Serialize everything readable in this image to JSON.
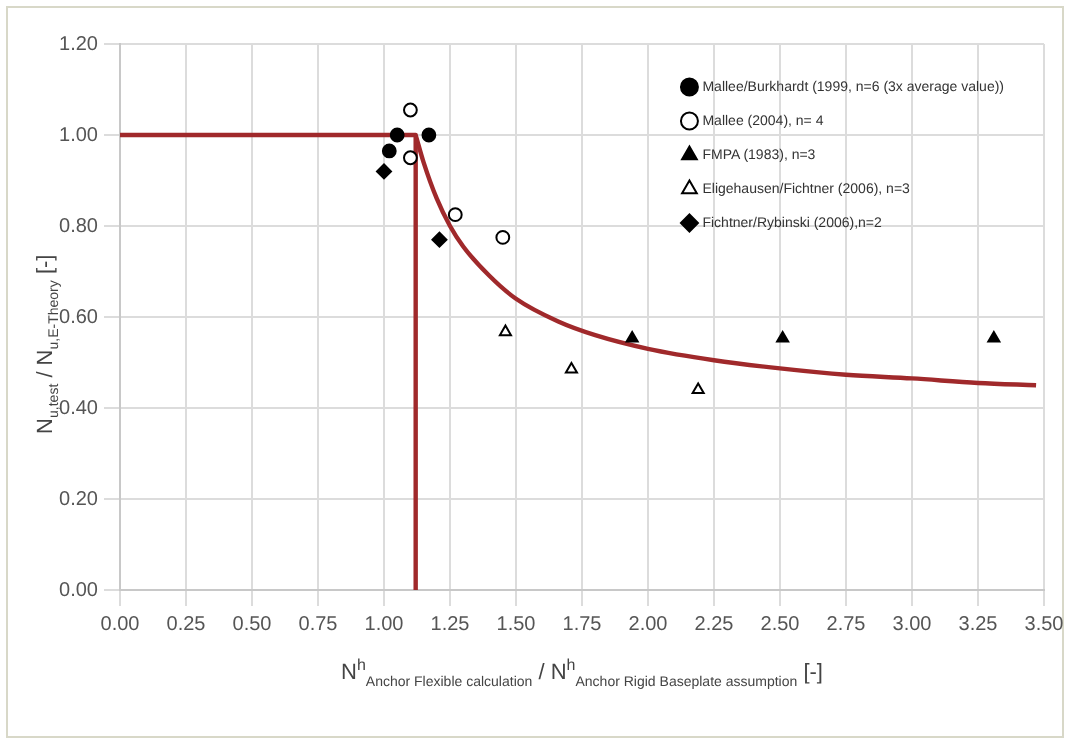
{
  "chart_data": {
    "type": "scatter",
    "xlabel": "N$^{h}$$_{Anchor Flexible calculation}$ / N$^{h}$$_{Anchor Rigid Baseplate assumption}$ [-]",
    "ylabel": "N$_{u,test}$ / N$_{u,E-Theory}$ [-]",
    "xlim": [
      0,
      3.5
    ],
    "xticks": [
      {
        "value": 0,
        "label": "0.00"
      },
      {
        "value": 0.25,
        "label": "0.25"
      },
      {
        "value": 0.5,
        "label": "0.50"
      },
      {
        "value": 0.75,
        "label": "0.75"
      },
      {
        "value": 1,
        "label": "1.00"
      },
      {
        "value": 1.25,
        "label": "1.25"
      },
      {
        "value": 1.5,
        "label": "1.50"
      },
      {
        "value": 1.75,
        "label": "1.75"
      },
      {
        "value": 2,
        "label": "2.00"
      },
      {
        "value": 2.25,
        "label": "2.25"
      },
      {
        "value": 2.5,
        "label": "2.50"
      },
      {
        "value": 2.75,
        "label": "2.75"
      },
      {
        "value": 3,
        "label": "3.00"
      },
      {
        "value": 3.25,
        "label": "3.25"
      },
      {
        "value": 3.5,
        "label": "3.50"
      }
    ],
    "ylim": [
      0,
      1.2
    ],
    "yticks": [
      {
        "value": 0,
        "label": "0.00"
      },
      {
        "value": 0.2,
        "label": "0.20"
      },
      {
        "value": 0.4,
        "label": "0.40"
      },
      {
        "value": 0.6,
        "label": "0.60"
      },
      {
        "value": 0.8,
        "label": "0.80"
      },
      {
        "value": 1,
        "label": "1.00"
      },
      {
        "value": 1.2,
        "label": "1.20"
      }
    ],
    "grid": true,
    "legend": "top right",
    "series": [
      {
        "name": "Mallee/Burkhardt (1999, n=6 (3x average value))",
        "color": "#000000",
        "marker": "circle",
        "x": [
          1.05,
          1.02,
          1.17
        ],
        "values": [
          1.0,
          0.965,
          1.0
        ]
      },
      {
        "name": "Mallee (2004), n= 4",
        "color": "#ffffff",
        "marker": "circle",
        "x": [
          1.1,
          1.1,
          1.27,
          1.45
        ],
        "values": [
          1.055,
          0.95,
          0.825,
          0.775
        ]
      },
      {
        "name": "FMPA (1983), n=3",
        "color": "#000000",
        "marker": "triangle",
        "x": [
          1.94,
          2.51,
          3.31
        ],
        "values": [
          0.553,
          0.553,
          0.553
        ]
      },
      {
        "name": "Eligehausen/Fichtner (2006), n=3",
        "color": "#ffffff",
        "marker": "triangle",
        "x": [
          1.46,
          1.71,
          2.19
        ],
        "values": [
          0.567,
          0.485,
          0.44
        ]
      },
      {
        "name": "Fichtner/Rybinski (2006),n=2",
        "color": "#000000",
        "marker": "diamond",
        "x": [
          1.0,
          1.21
        ],
        "values": [
          0.92,
          0.77
        ]
      },
      {
        "type": "line",
        "color": "#a0292b",
        "marker": "none",
        "x": [
          0,
          1.12,
          1.12
        ],
        "values": [
          1,
          1,
          0
        ]
      },
      {
        "type": "line",
        "color": "#a0292b",
        "marker": "none",
        "x": [
          1.12,
          1.15,
          1.2,
          1.25,
          1.3,
          1.4,
          1.5,
          1.66,
          1.8,
          2.0,
          2.25,
          2.5,
          2.75,
          3.0,
          3.25,
          3.47
        ],
        "values": [
          1.0,
          0.94,
          0.86,
          0.8,
          0.755,
          0.69,
          0.64,
          0.59,
          0.56,
          0.53,
          0.505,
          0.487,
          0.473,
          0.465,
          0.455,
          0.45
        ]
      }
    ]
  }
}
